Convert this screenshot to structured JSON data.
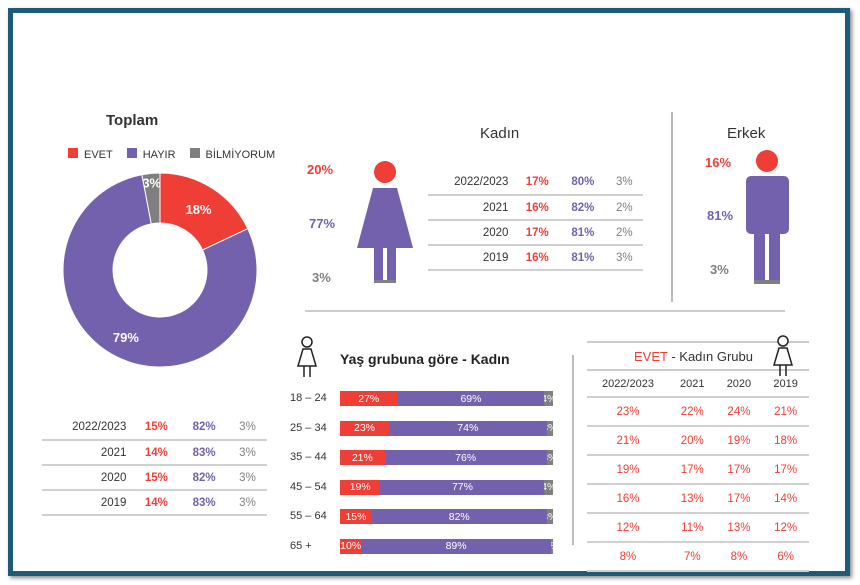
{
  "colors": {
    "evet": "#ef3e36",
    "hayir": "#7361ad",
    "bilmiyorum": "#7f7f7f",
    "frame": "#1d5b78"
  },
  "chart_data": [
    {
      "type": "pie",
      "title": "Toplam",
      "categories": [
        "EVET",
        "HAYIR",
        "BİLMİYORUM"
      ],
      "values": [
        18,
        79,
        3
      ],
      "labels": [
        "18%",
        "79%",
        "3%"
      ],
      "legend": "top"
    },
    {
      "type": "table",
      "title": "Toplam",
      "rows": [
        [
          "2022/2023",
          "15%",
          "82%",
          "3%"
        ],
        [
          "2021",
          "14%",
          "83%",
          "3%"
        ],
        [
          "2020",
          "15%",
          "82%",
          "3%"
        ],
        [
          "2019",
          "14%",
          "83%",
          "3%"
        ]
      ]
    },
    {
      "type": "table",
      "title": "Kadın",
      "summary": [
        "20%",
        "77%",
        "3%"
      ],
      "rows": [
        [
          "2022/2023",
          "17%",
          "80%",
          "3%"
        ],
        [
          "2021",
          "16%",
          "82%",
          "2%"
        ],
        [
          "2020",
          "17%",
          "81%",
          "2%"
        ],
        [
          "2019",
          "16%",
          "81%",
          "3%"
        ]
      ]
    },
    {
      "type": "bar",
      "title": "Erkek",
      "summary": [
        "16%",
        "81%",
        "3%"
      ]
    },
    {
      "type": "bar",
      "stacked": true,
      "title": "Yaş grubuna göre - Kadın",
      "categories": [
        "18 – 24",
        "25 – 34",
        "35 – 44",
        "45 – 54",
        "55 – 64",
        "65 +"
      ],
      "series": [
        {
          "name": "EVET",
          "values": [
            27,
            23,
            21,
            19,
            15,
            10
          ]
        },
        {
          "name": "HAYIR",
          "values": [
            69,
            74,
            76,
            77,
            82,
            89
          ]
        },
        {
          "name": "BİLMİYORUM",
          "values": [
            4,
            3,
            3,
            4,
            3,
            1
          ]
        }
      ]
    },
    {
      "type": "table",
      "title_red": "EVET",
      "title_rest": " - Kadın Grubu",
      "headers": [
        "2022/2023",
        "2021",
        "2020",
        "2019"
      ],
      "rows": [
        [
          "23%",
          "22%",
          "24%",
          "21%"
        ],
        [
          "21%",
          "20%",
          "19%",
          "18%"
        ],
        [
          "19%",
          "17%",
          "17%",
          "17%"
        ],
        [
          "16%",
          "13%",
          "17%",
          "14%"
        ],
        [
          "12%",
          "11%",
          "13%",
          "12%"
        ],
        [
          "8%",
          "7%",
          "8%",
          "6%"
        ]
      ]
    }
  ]
}
